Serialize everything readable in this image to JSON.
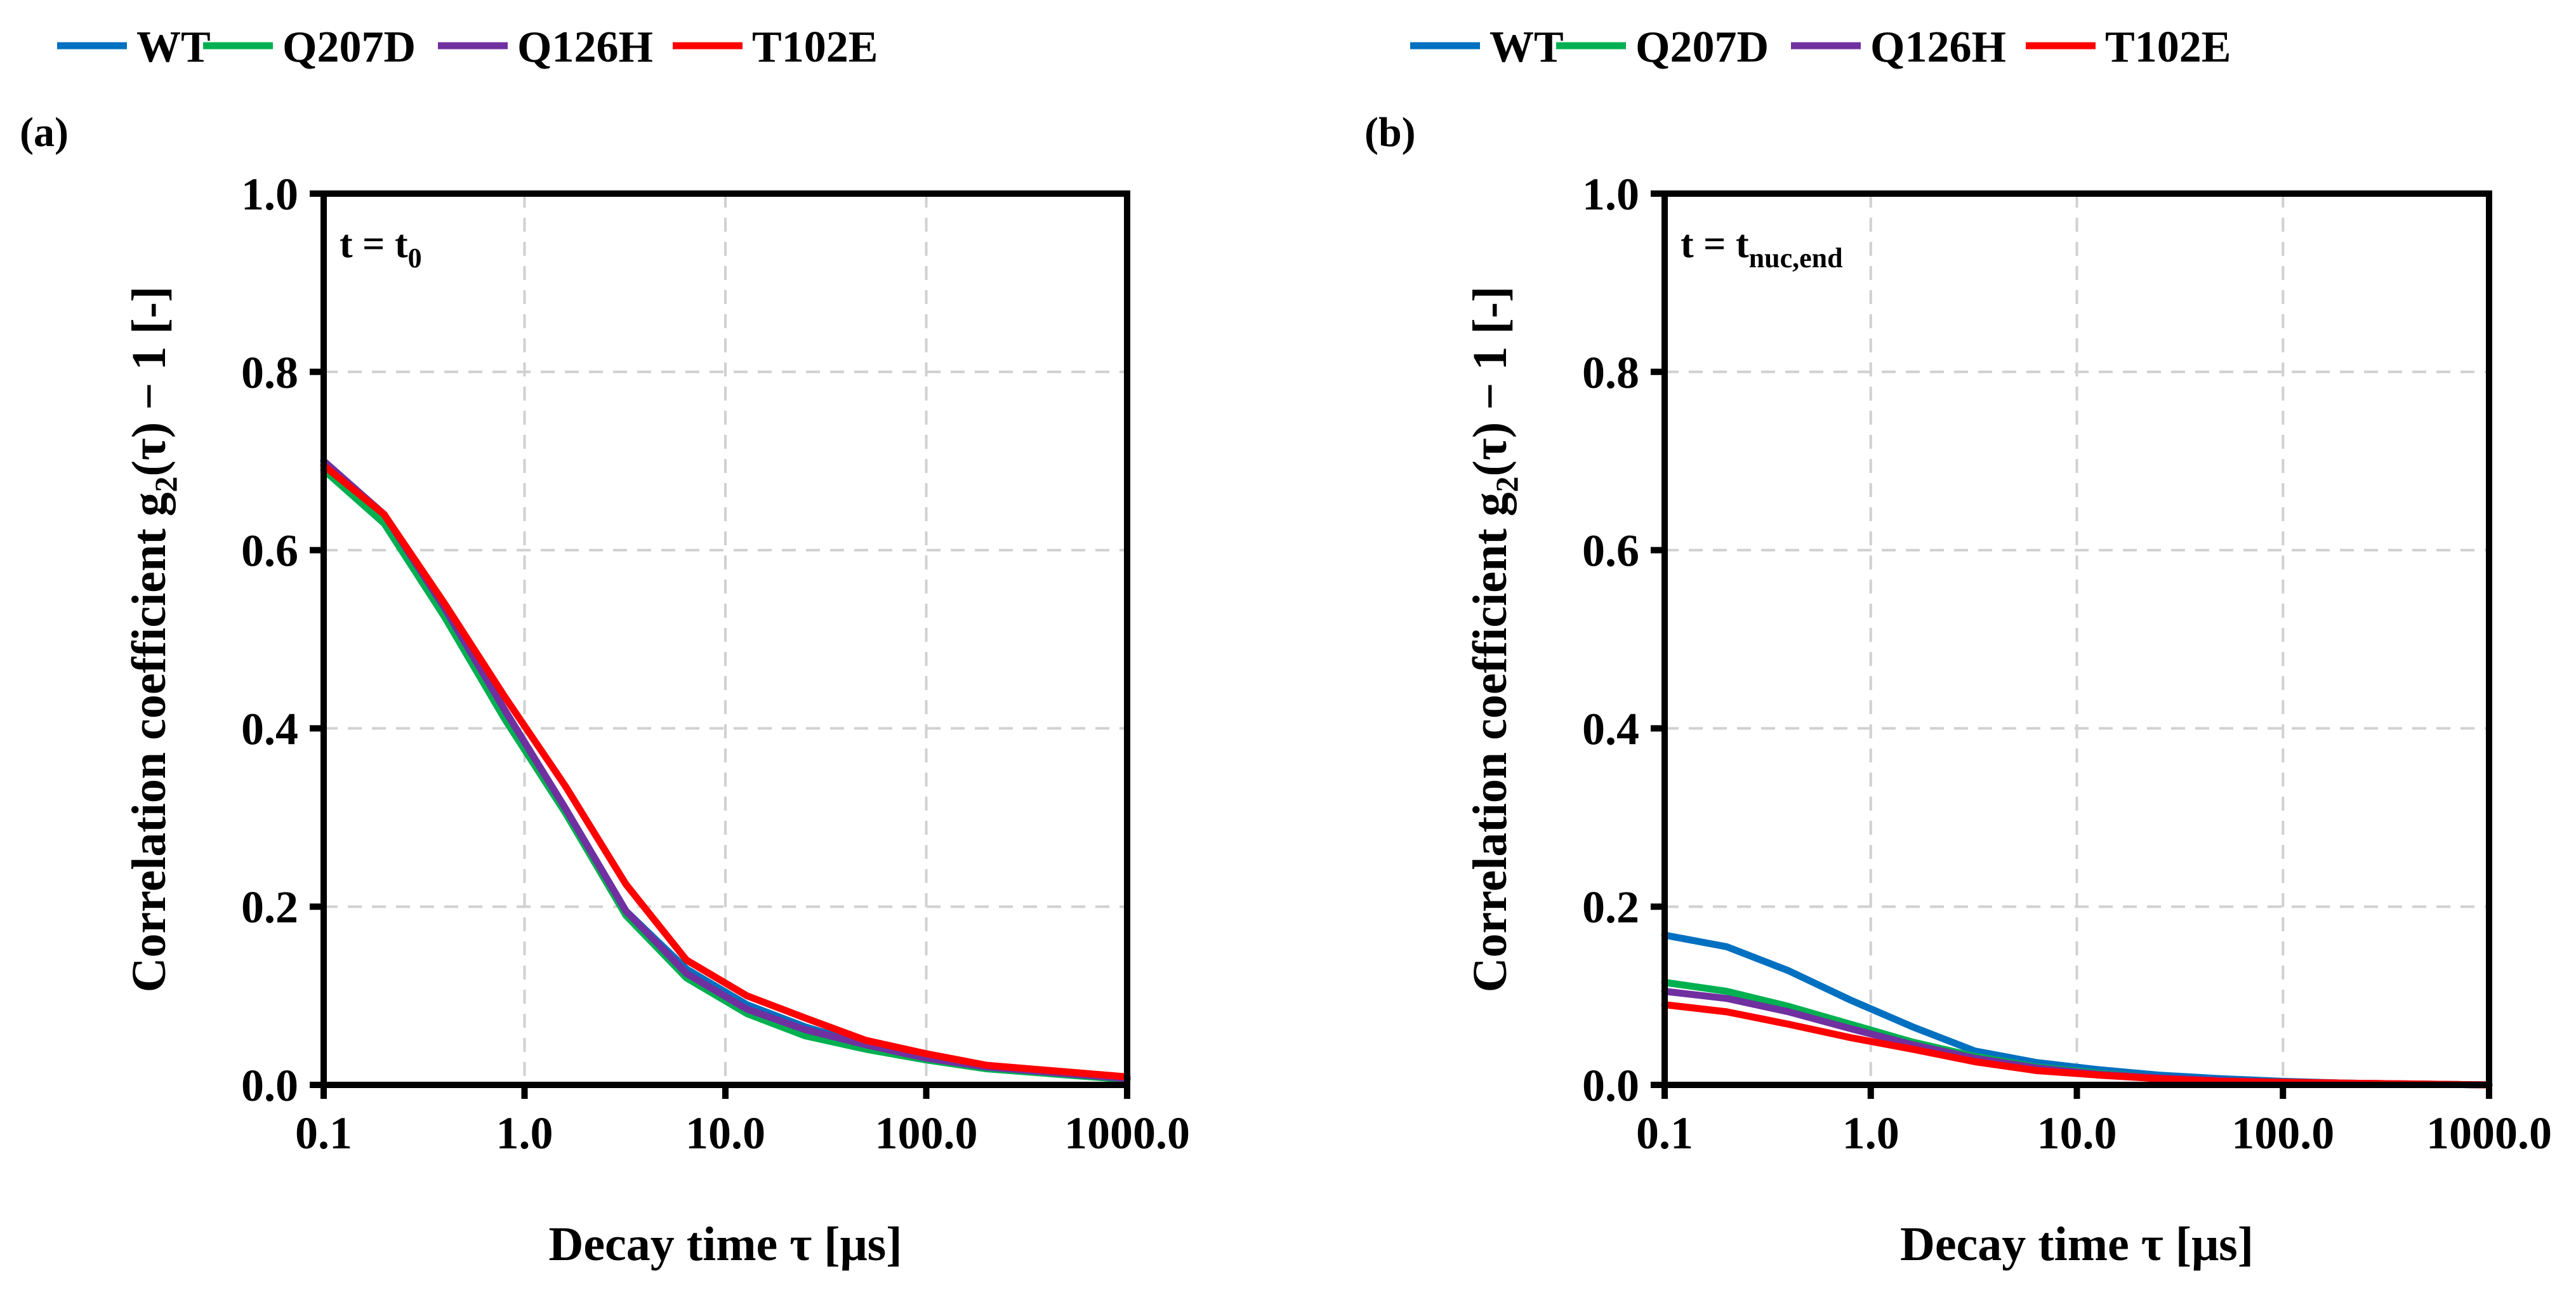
{
  "colors": {
    "WT": "#0070c0",
    "Q207D": "#00b050",
    "Q126H": "#7030a0",
    "T102E": "#ff0000"
  },
  "chart_data": [
    {
      "type": "line",
      "panel_label": "(a)",
      "annotation": {
        "main": "t = t",
        "sub": "0"
      },
      "xlabel": "Decay time τ [μs]",
      "ylabel": {
        "pre": "Correlation coefficient g",
        "sub": "2",
        "post": "(τ) − 1 [-]"
      },
      "xscale": "log",
      "xlim": [
        0.1,
        1000
      ],
      "ylim": [
        0,
        1
      ],
      "xticks": [
        0.1,
        1,
        10,
        100,
        1000
      ],
      "xtick_labels": [
        "0.1",
        "1.0",
        "10.0",
        "100.0",
        "1000.0"
      ],
      "yticks": [
        0,
        0.2,
        0.4,
        0.6,
        0.8,
        1.0
      ],
      "ytick_labels": [
        "0.0",
        "0.2",
        "0.4",
        "0.6",
        "0.8",
        "1.0"
      ],
      "grid": true,
      "legend": [
        "WT",
        "Q207D",
        "Q126H",
        "T102E"
      ],
      "legend_placement": "top",
      "x": [
        0.1,
        0.2,
        0.4,
        0.8,
        1.6,
        3.2,
        6.4,
        12.8,
        25,
        50,
        100,
        200,
        1000
      ],
      "series": [
        {
          "name": "WT",
          "values": [
            0.7,
            0.64,
            0.53,
            0.42,
            0.31,
            0.195,
            0.13,
            0.09,
            0.065,
            0.045,
            0.03,
            0.02,
            0.008
          ]
        },
        {
          "name": "Q207D",
          "values": [
            0.69,
            0.63,
            0.525,
            0.41,
            0.305,
            0.19,
            0.12,
            0.08,
            0.055,
            0.04,
            0.028,
            0.018,
            0.006
          ]
        },
        {
          "name": "Q126H",
          "values": [
            0.7,
            0.64,
            0.535,
            0.42,
            0.31,
            0.195,
            0.125,
            0.085,
            0.062,
            0.045,
            0.03,
            0.02,
            0.007
          ]
        },
        {
          "name": "T102E",
          "values": [
            0.695,
            0.64,
            0.54,
            0.435,
            0.335,
            0.225,
            0.14,
            0.1,
            0.075,
            0.05,
            0.035,
            0.022,
            0.009
          ]
        }
      ]
    },
    {
      "type": "line",
      "panel_label": "(b)",
      "annotation": {
        "main": "t = t",
        "sub": "nuc,end"
      },
      "xlabel": "Decay time τ [μs]",
      "ylabel": {
        "pre": "Correlation coefficient g",
        "sub": "2",
        "post": "(τ) − 1 [-]"
      },
      "xscale": "log",
      "xlim": [
        0.1,
        1000
      ],
      "ylim": [
        0,
        1
      ],
      "xticks": [
        0.1,
        1,
        10,
        100,
        1000
      ],
      "xtick_labels": [
        "0.1",
        "1.0",
        "10.0",
        "100.0",
        "1000.0"
      ],
      "yticks": [
        0,
        0.2,
        0.4,
        0.6,
        0.8,
        1.0
      ],
      "ytick_labels": [
        "0.0",
        "0.2",
        "0.4",
        "0.6",
        "0.8",
        "1.0"
      ],
      "grid": true,
      "legend": [
        "WT",
        "Q207D",
        "Q126H",
        "T102E"
      ],
      "legend_placement": "top",
      "x": [
        0.1,
        0.2,
        0.4,
        0.8,
        1.6,
        3.2,
        6.4,
        12.8,
        25,
        50,
        100,
        200,
        1000
      ],
      "series": [
        {
          "name": "WT",
          "values": [
            0.168,
            0.155,
            0.128,
            0.095,
            0.065,
            0.038,
            0.025,
            0.017,
            0.011,
            0.007,
            0.004,
            0.002,
            0.0
          ]
        },
        {
          "name": "Q207D",
          "values": [
            0.115,
            0.105,
            0.088,
            0.068,
            0.048,
            0.032,
            0.02,
            0.013,
            0.008,
            0.005,
            0.003,
            0.002,
            0.0
          ]
        },
        {
          "name": "Q126H",
          "values": [
            0.105,
            0.097,
            0.082,
            0.063,
            0.045,
            0.03,
            0.019,
            0.012,
            0.008,
            0.005,
            0.003,
            0.002,
            0.0
          ]
        },
        {
          "name": "T102E",
          "values": [
            0.09,
            0.082,
            0.068,
            0.053,
            0.04,
            0.026,
            0.016,
            0.011,
            0.007,
            0.004,
            0.003,
            0.002,
            0.0
          ]
        }
      ]
    }
  ]
}
